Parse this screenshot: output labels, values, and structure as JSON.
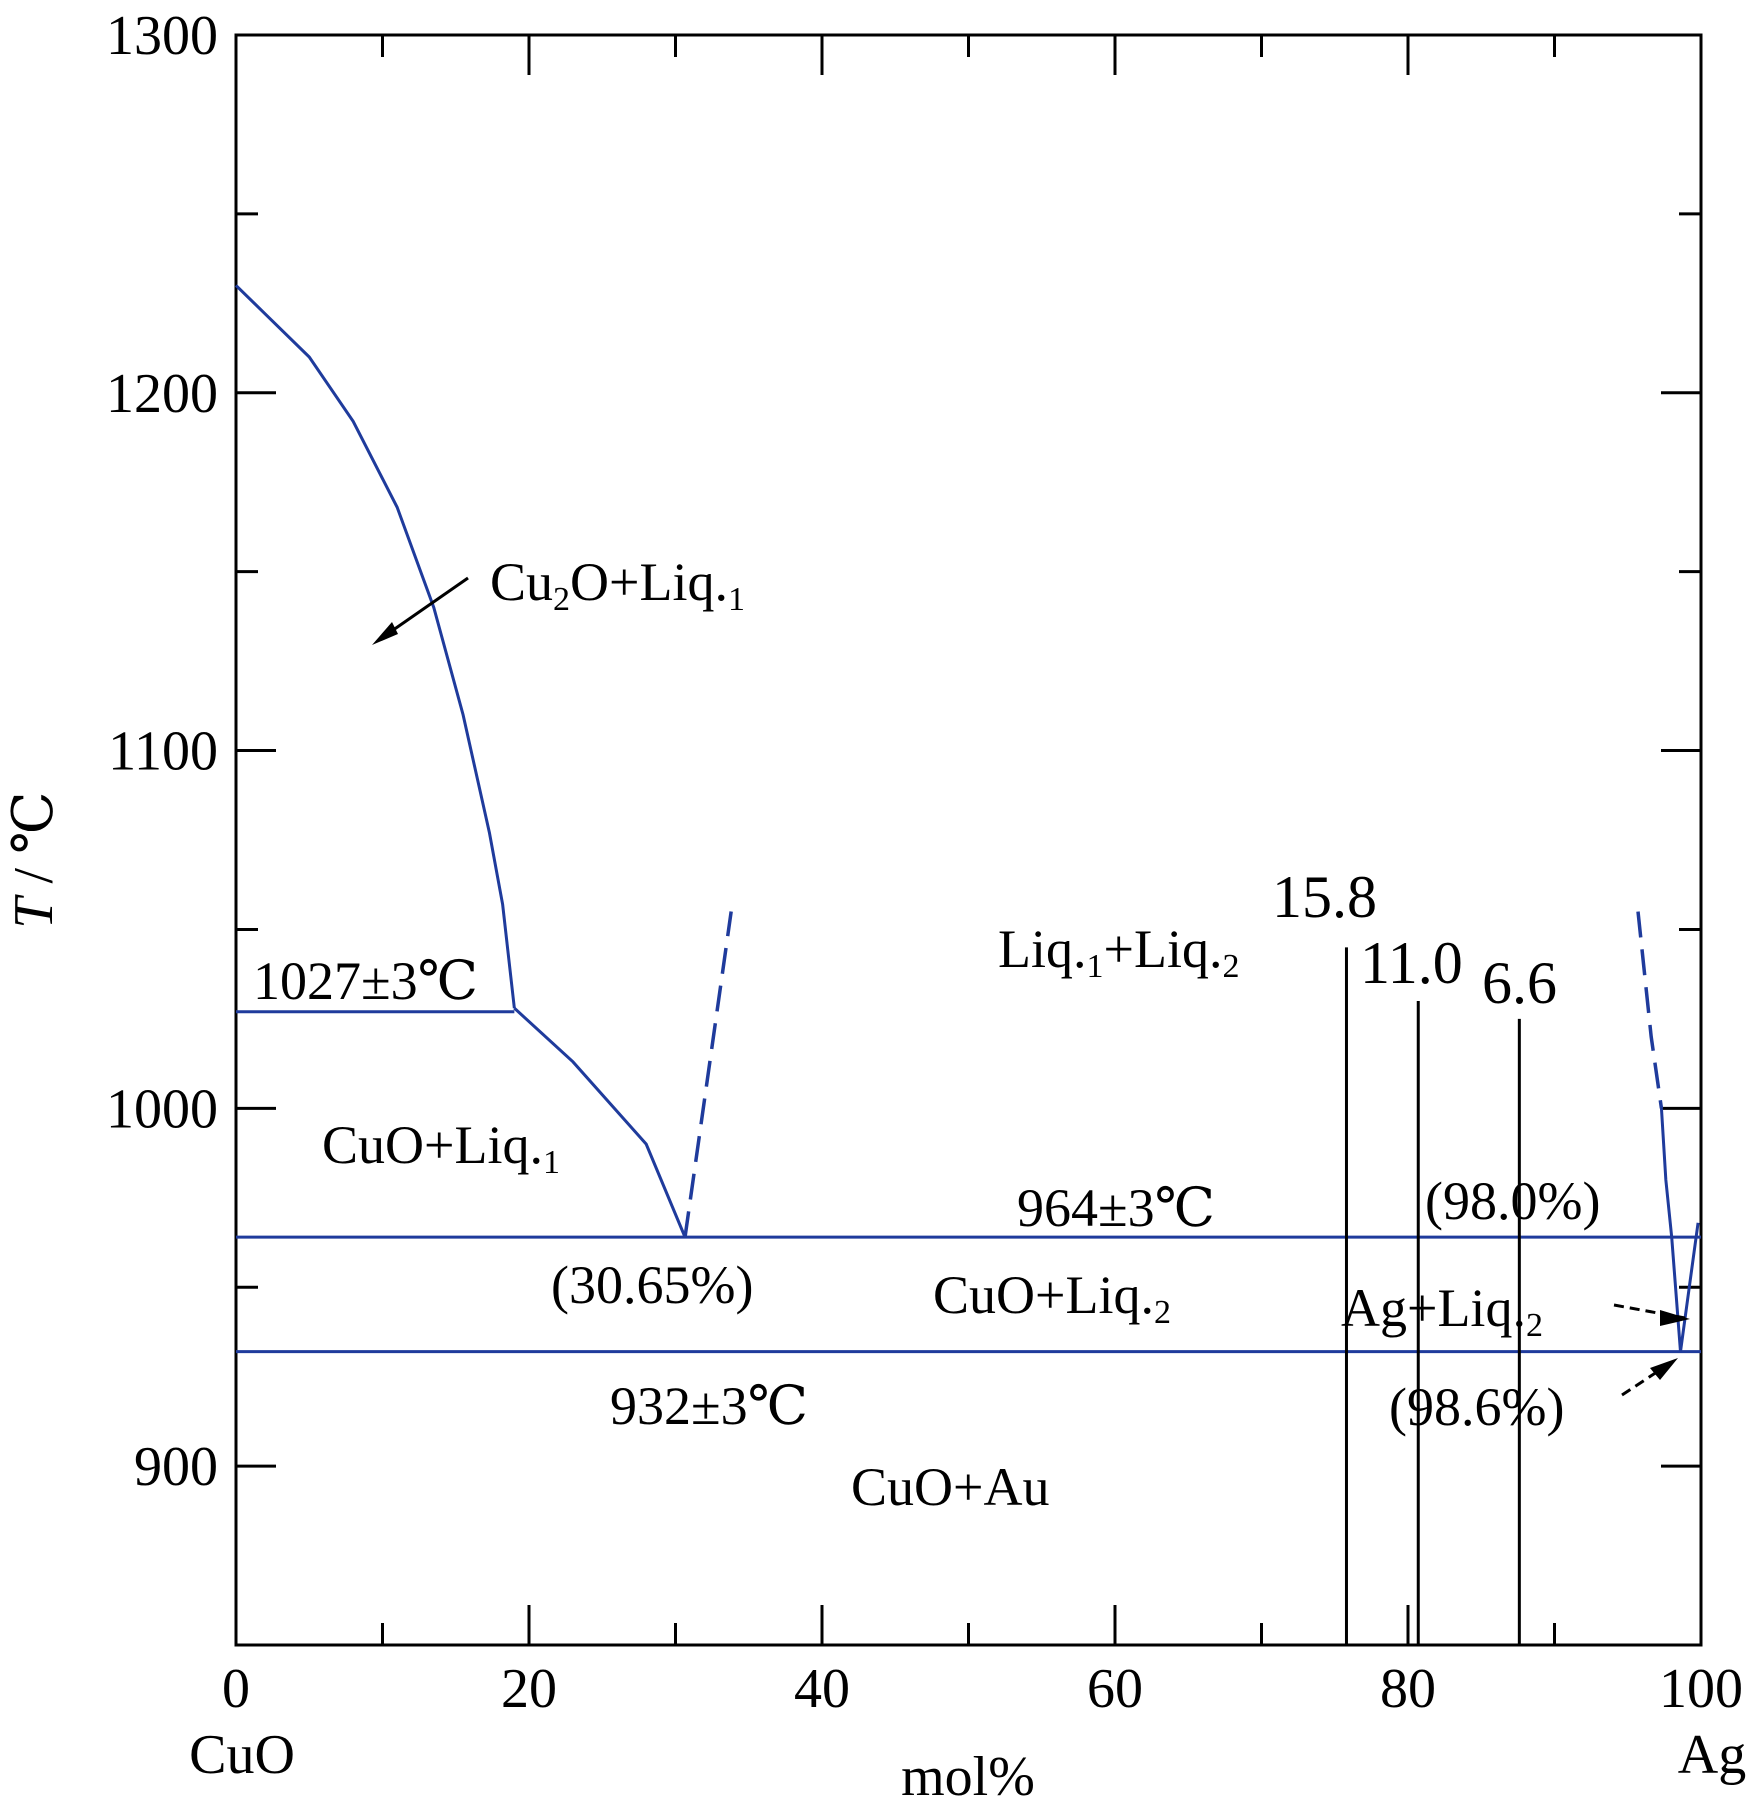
{
  "chart_data": {
    "type": "line",
    "ylabel_var": "T",
    "ylabel_unit": "℃",
    "xlabel": "mol%",
    "left_component": "CuO",
    "right_component": "Ag",
    "xlim": [
      0,
      100
    ],
    "ylim": [
      850,
      1300
    ],
    "xticks_major": [
      0,
      20,
      40,
      60,
      80,
      100
    ],
    "xticks_minor": [
      10,
      30,
      50,
      70,
      90
    ],
    "yticks_major": [
      900,
      1000,
      1100,
      1200,
      1300
    ],
    "yticks_minor": [
      950,
      1050,
      1150,
      1250
    ],
    "colors": {
      "phase_line": "#1f3b9c",
      "composition_line": "#000000"
    },
    "liquidus_left": [
      [
        0,
        1230
      ],
      [
        2,
        1222
      ],
      [
        5,
        1210
      ],
      [
        8,
        1192
      ],
      [
        11,
        1168
      ],
      [
        13.5,
        1140
      ],
      [
        15.5,
        1110
      ],
      [
        17.3,
        1077
      ],
      [
        18.2,
        1057
      ],
      [
        19,
        1028
      ]
    ],
    "liquidus_mid": [
      [
        19,
        1028
      ],
      [
        23,
        1013
      ],
      [
        28,
        990
      ],
      [
        30.65,
        964
      ]
    ],
    "liquidus_rise": [
      [
        30.65,
        964
      ],
      [
        33.8,
        1055
      ]
    ],
    "liquidus_rise_dashed": true,
    "liquidus_ag_dashed": [
      [
        95.7,
        1055
      ],
      [
        96.6,
        1020
      ],
      [
        97.3,
        1000
      ]
    ],
    "liquidus_ag": [
      [
        97.3,
        1000
      ],
      [
        97.6,
        980
      ],
      [
        98.0,
        964
      ],
      [
        98.6,
        932
      ],
      [
        99.2,
        950
      ],
      [
        99.8,
        968
      ]
    ],
    "isotherms": [
      {
        "T": 1027,
        "x_from": 0,
        "x_to": 19,
        "label": "1027±3℃"
      },
      {
        "T": 964,
        "x_from": 0,
        "x_to": 100,
        "label": "964±3℃"
      },
      {
        "T": 932,
        "x_from": 0,
        "x_to": 100,
        "label": "932±3℃"
      }
    ],
    "composition_lines": [
      {
        "x": 75.8,
        "top_T": 1045,
        "label": "15.8"
      },
      {
        "x": 80.7,
        "top_T": 1030,
        "label": "11.0"
      },
      {
        "x": 87.6,
        "top_T": 1025,
        "label": "6.6"
      }
    ],
    "region_labels": [
      {
        "main": "Cu",
        "sub": "2",
        "rest": "O+Liq.",
        "sub2": "1",
        "x": 17.5,
        "T": 1150
      },
      {
        "main": "Liq.",
        "sub": "1",
        "rest": "+Liq.",
        "sub2": "2",
        "x": 52.5,
        "T": 1045
      },
      {
        "main": "CuO+Liq.",
        "sub": "1",
        "rest": "",
        "sub2": "",
        "x": 5.9,
        "T": 985
      },
      {
        "main": "CuO+Liq.",
        "sub": "2",
        "rest": "",
        "sub2": "",
        "x": 47.3,
        "T": 945
      },
      {
        "main": "Ag+Liq.",
        "sub": "2",
        "rest": "",
        "sub2": "",
        "x": 75.5,
        "T": 940
      },
      {
        "main": "CuO+Au",
        "sub": "",
        "rest": "",
        "sub2": "",
        "x": 42.3,
        "T": 893
      }
    ],
    "annotations": [
      {
        "text": "(30.65%)",
        "x": 21.5,
        "T": 950
      },
      {
        "text": "(98.0%)",
        "x": 81.5,
        "T": 970
      },
      {
        "text": "(98.6%)",
        "x": 78.8,
        "T": 921
      }
    ]
  }
}
